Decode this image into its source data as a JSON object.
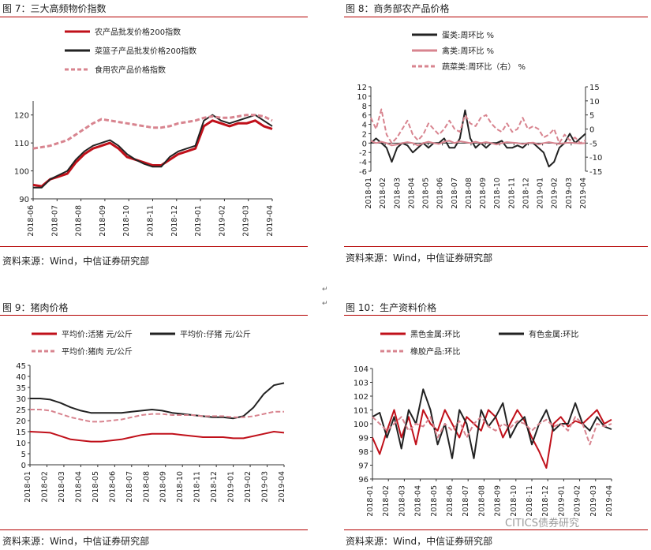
{
  "panels": [
    {
      "title": "图 7：三大高频物价指数",
      "source": "资料来源：Wind，中信证券研究部",
      "chart_data": {
        "type": "line",
        "x_labels": [
          "2018-06",
          "2018-07",
          "2018-08",
          "2018-09",
          "2018-10",
          "2018-11",
          "2018-12",
          "2019-01",
          "2019-02",
          "2019-03",
          "2019-04"
        ],
        "ylim": [
          90,
          125
        ],
        "yticks": [
          90,
          100,
          110,
          120
        ],
        "legend_position": "top",
        "series": [
          {
            "name": "农产品批发价格200指数",
            "color": "#c0101a",
            "style": "solid",
            "width": 3,
            "values": [
              95,
              94.5,
              97,
              98,
              99,
              103,
              106,
              108,
              109,
              110,
              108,
              105,
              104,
              103,
              102,
              102,
              104,
              106,
              107,
              108,
              116,
              118,
              117,
              116,
              117,
              117,
              118,
              116,
              115
            ]
          },
          {
            "name": "菜篮子产品批发价格200指数",
            "color": "#222222",
            "style": "solid",
            "width": 2,
            "values": [
              94,
              94,
              97,
              98.5,
              100,
              104,
              107,
              109,
              110,
              111,
              109,
              106,
              104,
              102.5,
              101.5,
              101.5,
              105,
              107,
              108,
              109,
              118,
              120,
              118,
              117,
              118,
              119,
              120,
              118,
              116
            ]
          },
          {
            "name": "食用农产品价格指数",
            "color": "#d8848f",
            "style": "dashed",
            "width": 3,
            "values": [
              108,
              108.5,
              109,
              110,
              111,
              113,
              115,
              117,
              118.5,
              118,
              117.5,
              117,
              116.5,
              116,
              115.5,
              115.5,
              116,
              117,
              117.5,
              118,
              119,
              119.5,
              119,
              119,
              119.5,
              120,
              120,
              119.5,
              118
            ]
          }
        ]
      }
    },
    {
      "title": "图 8：商务部农产品价格",
      "source": "资料来源：Wind，中信证券研究部",
      "chart_data": {
        "type": "line",
        "x_labels": [
          "2018-01",
          "2018-02",
          "2018-03",
          "2018-04",
          "2018-05",
          "2018-06",
          "2018-07",
          "2018-08",
          "2018-09",
          "2018-10",
          "2018-11",
          "2018-12",
          "2019-01",
          "2019-02",
          "2019-03",
          "2019-04"
        ],
        "ylim": [
          -6,
          12
        ],
        "yticks": [
          -6,
          -4,
          -2,
          0,
          2,
          4,
          6,
          8,
          10,
          12
        ],
        "y2lim": [
          -15,
          15
        ],
        "y2ticks": [
          -15,
          -10,
          -5,
          0,
          5,
          10,
          15
        ],
        "legend_position": "top",
        "series": [
          {
            "name": "蛋类:周环比 %",
            "color": "#222222",
            "style": "solid",
            "width": 2,
            "axis": "left",
            "values": [
              0,
              1,
              0,
              -1,
              -4,
              -1,
              0,
              -0.5,
              -2,
              -1,
              0,
              -1,
              0,
              0,
              1,
              -1,
              -1,
              1,
              7,
              1,
              -1,
              0,
              -1,
              0,
              0,
              0.5,
              -1,
              -1,
              -0.5,
              -1,
              0,
              0,
              -1,
              -2,
              -5,
              -4,
              -1,
              0,
              2,
              0,
              1,
              2
            ]
          },
          {
            "name": "禽类:周环比 %",
            "color": "#d8848f",
            "style": "solid",
            "width": 2,
            "axis": "left",
            "values": [
              0.5,
              0,
              0.3,
              0,
              -0.5,
              -0.3,
              0,
              0.2,
              0,
              -0.5,
              0,
              0.3,
              0,
              -0.2,
              0.3,
              0.5,
              0,
              0.4,
              0.2,
              0,
              0.3,
              0,
              0.2,
              0,
              -0.3,
              0,
              0.2,
              0.1,
              0,
              -0.2,
              0,
              0.1,
              -0.3,
              0,
              0.2,
              0,
              -0.2,
              0,
              0.1,
              0,
              -0.1,
              0
            ]
          },
          {
            "name": "蔬菜类:周环比（右） %",
            "color": "#d8848f",
            "style": "dashed",
            "width": 2,
            "axis": "right",
            "values": [
              4,
              0,
              7,
              -2,
              -5,
              -3,
              0,
              3,
              -2,
              -4,
              -2,
              2,
              0,
              -2,
              0,
              3,
              0,
              -1,
              5,
              2,
              1,
              4,
              5,
              2,
              0,
              -1,
              2,
              -1,
              0,
              4,
              0,
              1,
              0,
              -3,
              -2,
              0,
              -5,
              -2,
              -4,
              -3,
              -5,
              -4
            ]
          }
        ]
      }
    },
    {
      "title": "图 9：猪肉价格",
      "source": "资料来源：Wind，中信证券研究部",
      "chart_data": {
        "type": "line",
        "x_labels": [
          "2018-01",
          "2018-02",
          "2018-03",
          "2018-04",
          "2018-05",
          "2018-06",
          "2018-07",
          "2018-08",
          "2018-09",
          "2018-10",
          "2018-11",
          "2018-12",
          "2019-01",
          "2019-02",
          "2019-03",
          "2019-04"
        ],
        "ylim": [
          0,
          45
        ],
        "yticks": [
          0,
          5,
          10,
          15,
          20,
          25,
          30,
          35,
          40,
          45
        ],
        "legend_position": "top",
        "series": [
          {
            "name": "平均价:活猪 元/公斤",
            "color": "#c0101a",
            "style": "solid",
            "width": 2,
            "values": [
              15,
              14.8,
              14.5,
              13,
              11.5,
              11,
              10.5,
              10.5,
              11,
              11.5,
              12.5,
              13.5,
              14,
              14,
              14,
              13.5,
              13,
              12.5,
              12.5,
              12.5,
              12,
              12,
              13,
              14,
              15,
              14.5
            ]
          },
          {
            "name": "平均价:仔猪 元/公斤",
            "color": "#222222",
            "style": "solid",
            "width": 2,
            "values": [
              30,
              30,
              29.5,
              28,
              26,
              24.5,
              23.5,
              23.5,
              23.5,
              23.5,
              24,
              24.5,
              25,
              24.5,
              23.5,
              23,
              22.5,
              22,
              21.5,
              21.5,
              21,
              22,
              26,
              32,
              36,
              37
            ]
          },
          {
            "name": "平均价:猪肉 元/公斤",
            "color": "#d8848f",
            "style": "dashed",
            "width": 2,
            "values": [
              25,
              25,
              24.5,
              23,
              21.5,
              20.5,
              19.5,
              19.5,
              20,
              20.5,
              21.5,
              22.5,
              23,
              23,
              22.5,
              22.5,
              22.5,
              22,
              22,
              22,
              21.5,
              21.5,
              22,
              23,
              24,
              24
            ]
          }
        ]
      }
    },
    {
      "title": "图 10：生产资料价格",
      "source": "资料来源：Wind，中信证券研究部",
      "chart_data": {
        "type": "line",
        "x_labels": [
          "2018-01",
          "2018-02",
          "2018-03",
          "2018-04",
          "2018-05",
          "2018-06",
          "2018-07",
          "2018-08",
          "2018-09",
          "2018-10",
          "2018-11",
          "2018-12",
          "2019-01",
          "2019-02",
          "2019-03",
          "2019-04"
        ],
        "ylim": [
          96,
          104
        ],
        "yticks": [
          96,
          97,
          98,
          99,
          100,
          101,
          102,
          103,
          104
        ],
        "legend_position": "top",
        "series": [
          {
            "name": "黑色金属:环比",
            "color": "#c0101a",
            "style": "solid",
            "width": 2,
            "values": [
              99,
              97.8,
              99.5,
              101,
              99,
              100.5,
              98.5,
              101,
              100,
              99.5,
              101,
              100,
              99,
              100.5,
              100,
              99.5,
              101,
              100.5,
              99,
              100,
              101,
              100.2,
              99,
              98,
              96.8,
              100,
              100.5,
              99.8,
              100.2,
              100,
              100.5,
              101,
              100,
              100.3
            ]
          },
          {
            "name": "有色金属:环比",
            "color": "#222222",
            "style": "solid",
            "width": 2,
            "values": [
              100.5,
              100.8,
              99,
              100.5,
              98.2,
              101,
              100,
              102.5,
              101,
              98.5,
              100,
              97.5,
              101,
              100,
              97.5,
              101,
              99.8,
              100.5,
              101.5,
              99,
              100,
              100.5,
              98.5,
              100,
              101,
              99.5,
              100,
              100,
              101.5,
              100,
              99.5,
              100.5,
              99.8,
              99.6
            ]
          },
          {
            "name": "橡胶产品:环比",
            "color": "#d8848f",
            "style": "dashed",
            "width": 2,
            "values": [
              100.5,
              100,
              99.5,
              100,
              100.5,
              99.5,
              100,
              99.8,
              100.5,
              99,
              100,
              99.5,
              100.2,
              99,
              100,
              100.5,
              99.8,
              99.5,
              100,
              99.7,
              100.2,
              100,
              99.5,
              100,
              100.3,
              99.8,
              100,
              99.5,
              100.5,
              100,
              98.5,
              100,
              99.8,
              100
            ]
          }
        ]
      }
    }
  ],
  "page_mark": "↵",
  "watermark": "CITICS债券研究"
}
